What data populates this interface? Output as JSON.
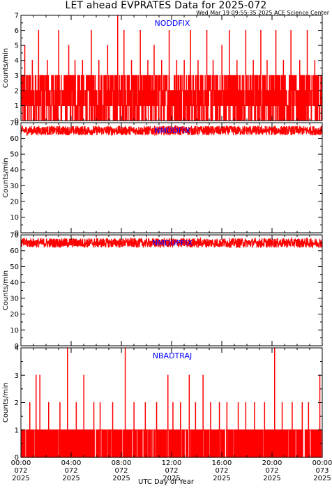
{
  "page": {
    "title": "LET ahead EVPRATES Data for 2025-072",
    "subtitle": "Wed Mar 19 09:55:35 2025 ACE Science Center",
    "xlabel": "UTC Day of Year"
  },
  "colors": {
    "series": "#ff0000",
    "panel_label": "#0000ff",
    "axes": "#000000"
  },
  "chart_data": [
    {
      "type": "line",
      "series": [
        {
          "name": "NODDFIX",
          "shape": "stepped",
          "values_description_range": [
            0,
            7
          ]
        }
      ],
      "ylabel": "Counts/min",
      "ylim": [
        0,
        7
      ],
      "yticks": [
        0,
        1,
        2,
        3,
        4,
        5,
        6,
        7
      ],
      "baseline": [
        0,
        1,
        2,
        3
      ],
      "spikes": [
        [
          0.3,
          5
        ],
        [
          0.9,
          4
        ],
        [
          1.4,
          6
        ],
        [
          2.1,
          4
        ],
        [
          3.0,
          6
        ],
        [
          3.8,
          5
        ],
        [
          4.3,
          4
        ],
        [
          4.9,
          4
        ],
        [
          5.6,
          6
        ],
        [
          6.2,
          4
        ],
        [
          6.9,
          5
        ],
        [
          7.7,
          7
        ],
        [
          8.2,
          6
        ],
        [
          8.8,
          4
        ],
        [
          9.5,
          6
        ],
        [
          10.1,
          4
        ],
        [
          10.6,
          5
        ],
        [
          11.2,
          4
        ],
        [
          11.8,
          6
        ],
        [
          12.4,
          4
        ],
        [
          13.0,
          4
        ],
        [
          13.5,
          6
        ],
        [
          14.1,
          4
        ],
        [
          14.8,
          6
        ],
        [
          15.3,
          4
        ],
        [
          16.0,
          5
        ],
        [
          16.6,
          6
        ],
        [
          17.2,
          4
        ],
        [
          17.9,
          6
        ],
        [
          18.5,
          4
        ],
        [
          19.1,
          6
        ],
        [
          19.6,
          4
        ],
        [
          20.3,
          6
        ],
        [
          20.9,
          4
        ],
        [
          21.5,
          6
        ],
        [
          22.2,
          4
        ],
        [
          22.8,
          6
        ],
        [
          23.4,
          4
        ]
      ]
    },
    {
      "type": "line",
      "series": [
        {
          "name": "NMDDFIX"
        }
      ],
      "ylabel": "Counts/min",
      "ylim": [
        0,
        70
      ],
      "yticks": [
        0,
        10,
        20,
        30,
        40,
        50,
        60,
        70
      ],
      "level": 65,
      "noise": 3
    },
    {
      "type": "line",
      "series": [
        {
          "name": "NMDUPFIX"
        }
      ],
      "ylabel": "Counts/min",
      "ylim": [
        0,
        70
      ],
      "yticks": [
        0,
        10,
        20,
        30,
        40,
        50,
        60,
        70
      ],
      "level": 65,
      "noise": 3
    },
    {
      "type": "line",
      "series": [
        {
          "name": "NBADTRAJ"
        }
      ],
      "ylabel": "Counts/min",
      "ylim": [
        0,
        4
      ],
      "yticks": [
        0,
        1,
        2,
        3,
        4
      ],
      "baseline": [
        0,
        1
      ],
      "spikes": [
        [
          0.7,
          2
        ],
        [
          1.2,
          3
        ],
        [
          1.5,
          3
        ],
        [
          2.2,
          2
        ],
        [
          3.1,
          2
        ],
        [
          3.7,
          4
        ],
        [
          4.4,
          2
        ],
        [
          5.0,
          3
        ],
        [
          5.8,
          2
        ],
        [
          6.3,
          2
        ],
        [
          7.3,
          2
        ],
        [
          8.3,
          4
        ],
        [
          9.0,
          2
        ],
        [
          9.9,
          2
        ],
        [
          10.8,
          2
        ],
        [
          11.7,
          3
        ],
        [
          12.1,
          2
        ],
        [
          12.7,
          2
        ],
        [
          13.4,
          3
        ],
        [
          13.9,
          2
        ],
        [
          14.5,
          3
        ],
        [
          15.1,
          2
        ],
        [
          15.8,
          2
        ],
        [
          16.4,
          2
        ],
        [
          17.3,
          2
        ],
        [
          17.9,
          2
        ],
        [
          18.6,
          2
        ],
        [
          19.4,
          2
        ],
        [
          20.2,
          4
        ],
        [
          20.8,
          2
        ],
        [
          21.6,
          2
        ],
        [
          22.4,
          2
        ],
        [
          22.9,
          2
        ],
        [
          23.8,
          3
        ]
      ],
      "xlim": [
        0,
        24
      ],
      "xticks": [
        {
          "hour": 0,
          "label": [
            "00:00",
            "072",
            "2025"
          ]
        },
        {
          "hour": 4,
          "label": [
            "04:00",
            "072",
            "2025"
          ]
        },
        {
          "hour": 8,
          "label": [
            "08:00",
            "072",
            "2025"
          ]
        },
        {
          "hour": 12,
          "label": [
            "12:00",
            "072",
            "2025"
          ]
        },
        {
          "hour": 16,
          "label": [
            "16:00",
            "072",
            "2025"
          ]
        },
        {
          "hour": 20,
          "label": [
            "20:00",
            "072",
            "2025"
          ]
        },
        {
          "hour": 24,
          "label": [
            "00:00",
            "073",
            "2025"
          ]
        }
      ]
    }
  ]
}
